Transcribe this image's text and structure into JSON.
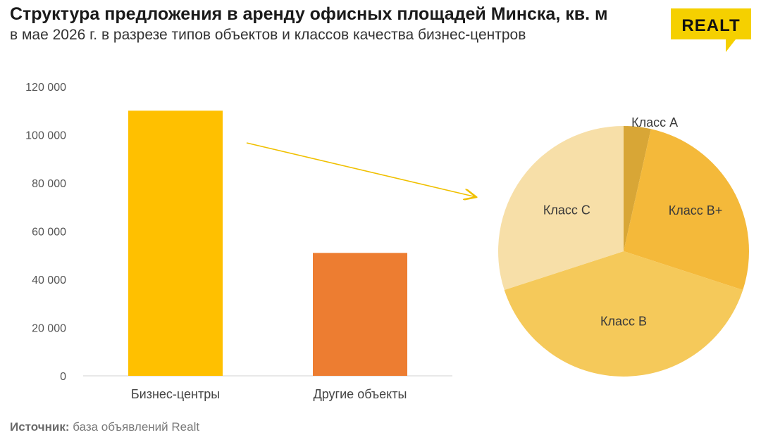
{
  "header": {
    "title": "Структура предложения в аренду офисных площадей Минска, кв. м",
    "subtitle": "в мае 2026 г. в разрезе типов объектов и классов качества бизнес-центров"
  },
  "logo": {
    "text": "REALT",
    "color": "#f5d000"
  },
  "source": {
    "label": "Источник:",
    "text": " база объявлений Realt"
  },
  "chart_data": [
    {
      "type": "bar",
      "categories": [
        "Бизнес-центры",
        "Другие объекты"
      ],
      "values": [
        110000,
        51000
      ],
      "colors": [
        "#ffc000",
        "#ed7d31"
      ],
      "ylim": [
        0,
        120000
      ],
      "yticks": [
        0,
        20000,
        40000,
        60000,
        80000,
        100000,
        120000
      ],
      "ytick_labels": [
        "0",
        "20 000",
        "40 000",
        "60 000",
        "80 000",
        "100 000",
        "120 000"
      ],
      "grid": false,
      "legend": "none"
    },
    {
      "type": "pie",
      "labels": [
        "Класс A",
        "Класс B+",
        "Класс B",
        "Класс C"
      ],
      "values": [
        3.5,
        26.5,
        40,
        30
      ],
      "colors": [
        "#d8a636",
        "#f4b93a",
        "#f5c95a",
        "#f7dfa8"
      ],
      "start": "12 o'clock, clockwise"
    }
  ]
}
